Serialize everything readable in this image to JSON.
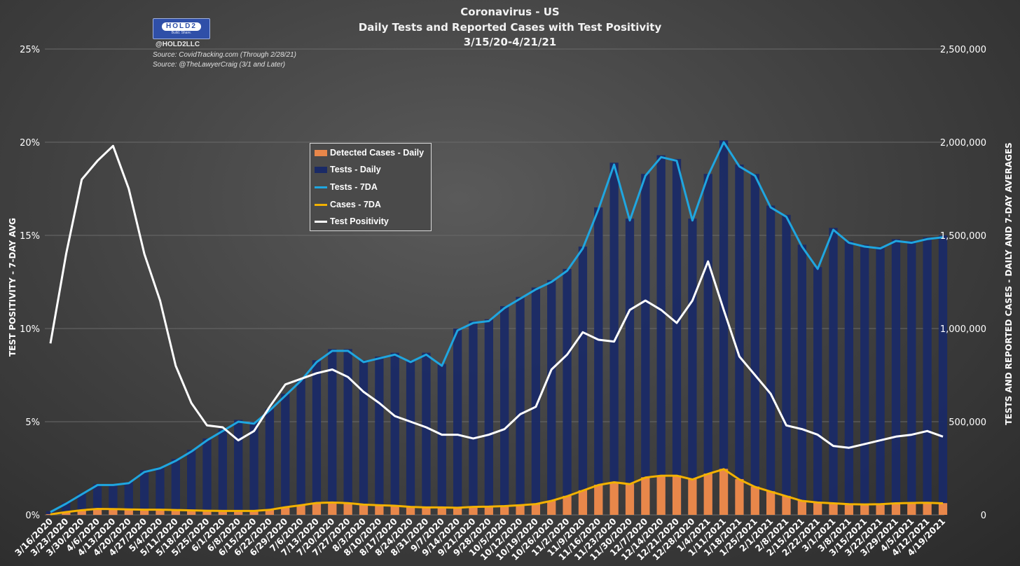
{
  "header": {
    "title_line1": "Coronavirus - US",
    "title_line2": "Daily Tests and Reported Cases with Test Positivity",
    "title_line3": "3/15/20-4/21/21",
    "logo_text": "HOLD2",
    "logo_subtext": "Build. Share.",
    "handle": "@HOLD2LLC",
    "source1": "Source: CovidTracking.com (Through 2/28/21)",
    "source2": "Source: @TheLawyerCraig (3/1 and Later)"
  },
  "colors": {
    "tests_daily": "#1a2a66",
    "cases_daily": "#e8874a",
    "tests_7da": "#1fa6e0",
    "cases_7da": "#f2b100",
    "positivity": "#ffffff",
    "grid": "#6a6a6a"
  },
  "chart_data": {
    "type": "bar+line",
    "title": "Coronavirus - US: Daily Tests and Reported Cases with Test Positivity, 3/15/20-4/21/21",
    "left_axis": {
      "label": "TEST POSITIVITY - 7-DAY AVG",
      "range": [
        0,
        25
      ],
      "ticks": [
        "0%",
        "5%",
        "10%",
        "15%",
        "20%",
        "25%"
      ]
    },
    "right_axis": {
      "label": "TESTS AND REPORTED CASES - DAILY AND 7-DAY AVERAGES",
      "range": [
        0,
        2500000
      ],
      "ticks": [
        "0",
        "500,000",
        "1,000,000",
        "1,500,000",
        "2,000,000",
        "2,500,000"
      ]
    },
    "categories": [
      "3/16/2020",
      "3/23/2020",
      "3/30/2020",
      "4/6/2020",
      "4/13/2020",
      "4/20/2020",
      "4/27/2020",
      "5/4/2020",
      "5/11/2020",
      "5/18/2020",
      "5/25/2020",
      "6/1/2020",
      "6/8/2020",
      "6/15/2020",
      "6/22/2020",
      "6/29/2020",
      "7/6/2020",
      "7/13/2020",
      "7/20/2020",
      "7/27/2020",
      "8/3/2020",
      "8/10/2020",
      "8/17/2020",
      "8/24/2020",
      "8/31/2020",
      "9/7/2020",
      "9/14/2020",
      "9/21/2020",
      "9/28/2020",
      "10/5/2020",
      "10/12/2020",
      "10/19/2020",
      "10/26/2020",
      "11/2/2020",
      "11/9/2020",
      "11/16/2020",
      "11/23/2020",
      "11/30/2020",
      "12/7/2020",
      "12/14/2020",
      "12/21/2020",
      "12/28/2020",
      "1/4/2021",
      "1/11/2021",
      "1/18/2021",
      "1/25/2021",
      "2/1/2021",
      "2/8/2021",
      "2/15/2021",
      "2/22/2021",
      "3/1/2021",
      "3/8/2021",
      "3/15/2021",
      "3/22/2021",
      "3/29/2021",
      "4/5/2021",
      "4/12/2021",
      "4/19/2021"
    ],
    "series": [
      {
        "name": "Tests - 7DA",
        "axis": "right",
        "values": [
          15000,
          60000,
          110000,
          160000,
          160000,
          170000,
          230000,
          250000,
          290000,
          340000,
          400000,
          450000,
          500000,
          490000,
          560000,
          640000,
          720000,
          820000,
          880000,
          880000,
          820000,
          840000,
          860000,
          820000,
          860000,
          800000,
          990000,
          1030000,
          1040000,
          1110000,
          1160000,
          1210000,
          1250000,
          1310000,
          1430000,
          1640000,
          1880000,
          1580000,
          1820000,
          1920000,
          1900000,
          1580000,
          1820000,
          2000000,
          1870000,
          1820000,
          1650000,
          1600000,
          1440000,
          1320000,
          1530000,
          1460000,
          1440000,
          1430000,
          1470000,
          1460000,
          1480000,
          1490000
        ]
      },
      {
        "name": "Cases - 7DA",
        "axis": "right",
        "values": [
          3000,
          15000,
          25000,
          32000,
          31000,
          29000,
          28000,
          28000,
          26000,
          24000,
          22000,
          21000,
          21000,
          21000,
          27000,
          41000,
          52000,
          64000,
          66000,
          63000,
          55000,
          52000,
          49000,
          43000,
          40000,
          40000,
          38000,
          43000,
          44000,
          47000,
          52000,
          58000,
          75000,
          100000,
          130000,
          160000,
          175000,
          165000,
          200000,
          210000,
          210000,
          190000,
          220000,
          245000,
          190000,
          150000,
          125000,
          100000,
          75000,
          66000,
          62000,
          57000,
          56000,
          57000,
          62000,
          64000,
          65000,
          62000
        ]
      },
      {
        "name": "Test Positivity",
        "axis": "left",
        "values": [
          9.2,
          14.0,
          18.0,
          19.0,
          19.8,
          17.5,
          14.0,
          11.5,
          8.0,
          6.0,
          4.8,
          4.7,
          4.0,
          4.5,
          5.8,
          7.0,
          7.3,
          7.6,
          7.8,
          7.4,
          6.6,
          6.0,
          5.3,
          5.0,
          4.7,
          4.3,
          4.3,
          4.1,
          4.3,
          4.6,
          5.4,
          5.8,
          7.8,
          8.6,
          9.8,
          9.4,
          9.3,
          11.0,
          11.5,
          11.0,
          10.3,
          11.5,
          13.6,
          11.0,
          8.5,
          7.5,
          6.5,
          4.8,
          4.6,
          4.3,
          3.7,
          3.6,
          3.8,
          4.0,
          4.2,
          4.3,
          4.5,
          4.2
        ]
      },
      {
        "name": "Tests - Daily",
        "axis": "right",
        "values": [
          20000,
          65000,
          115000,
          165000,
          160000,
          175000,
          240000,
          255000,
          300000,
          350000,
          410000,
          460000,
          510000,
          500000,
          570000,
          650000,
          730000,
          830000,
          890000,
          890000,
          830000,
          850000,
          870000,
          830000,
          870000,
          810000,
          1000000,
          1040000,
          1050000,
          1120000,
          1170000,
          1220000,
          1260000,
          1320000,
          1440000,
          1650000,
          1890000,
          1590000,
          1830000,
          1930000,
          1910000,
          1590000,
          1830000,
          2010000,
          1880000,
          1830000,
          1660000,
          1610000,
          1450000,
          1330000,
          1540000,
          1470000,
          1450000,
          1440000,
          1480000,
          1470000,
          1490000,
          1500000
        ]
      },
      {
        "name": "Detected Cases - Daily",
        "axis": "right",
        "values": [
          4000,
          16000,
          27000,
          33000,
          32000,
          30000,
          29000,
          29000,
          27000,
          25000,
          23000,
          22000,
          22000,
          22000,
          28000,
          42000,
          53000,
          65000,
          67000,
          64000,
          56000,
          53000,
          50000,
          44000,
          41000,
          41000,
          39000,
          44000,
          45000,
          48000,
          53000,
          59000,
          76000,
          102000,
          132000,
          162000,
          177000,
          167000,
          202000,
          212000,
          212000,
          192000,
          222000,
          247000,
          192000,
          152000,
          127000,
          102000,
          77000,
          67000,
          63000,
          58000,
          57000,
          58000,
          63000,
          65000,
          66000,
          63000
        ]
      }
    ],
    "legend": [
      "Detected Cases - Daily",
      "Tests - Daily",
      "Tests - 7DA",
      "Cases - 7DA",
      "Test Positivity"
    ],
    "legend_position": "upper-center"
  }
}
